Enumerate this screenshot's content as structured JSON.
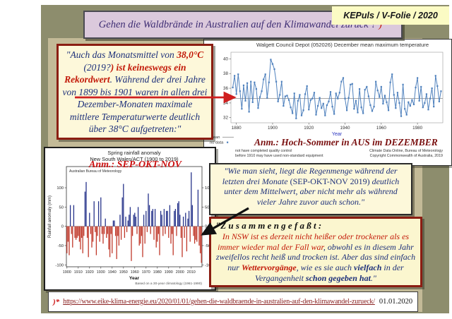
{
  "header": {
    "title_segments": [
      {
        "t": "Gehen die Waldbrände in Australien auf den Klimawandel zurück ?  ",
        "c": "purple"
      },
      {
        "t": ")*",
        "c": "red"
      }
    ],
    "badge": "KEPuls / V-Folie / 2020"
  },
  "quote1": {
    "segments": [
      {
        "t": "\"Auch das Monatsmittel von ",
        "c": "blue"
      },
      {
        "t": "38,0°C",
        "c": "redbold"
      },
      {
        "t": " (2019?",
        "c": "blue"
      },
      {
        "t": ") ist keineswegs ein Rekordwert",
        "c": "redbold"
      },
      {
        "t": ". Während der drei Jahre von ",
        "c": "blue"
      },
      {
        "t": "1899 bis 1901",
        "c": "blue"
      },
      {
        "t": " waren in allen drei Dezember-Monaten maximale mittlere Temperaturwerte deutlich über 38°C aufgetreten:\"",
        "c": "blue"
      }
    ]
  },
  "annotation_summer": "Anm.: Hoch-Sommer in AUS im DEZEMBER",
  "annotation_spring": "Anm.: SEP-OKT-NOV",
  "quote2": {
    "segments": [
      {
        "t": "\"Wie man sieht, liegt die Regenmenge während der letzten drei Monate ",
        "c": "blue"
      },
      {
        "t": "(SEP-OKT-NOV 2019)",
        "c": "blueroman"
      },
      {
        "t": " deutlich unter dem Mittelwert, aber nicht mehr als während vieler Jahre zuvor auch schon.\"",
        "c": "blue"
      }
    ]
  },
  "summary": {
    "header": "\"Z u s a m m e n g e f a ß t :",
    "segments": [
      {
        "t": "In NSW ist es derzeit nicht heißer oder trockener als es immer wieder mal der Fall war",
        "c": "red"
      },
      {
        "t": ", obwohl es in diesem Jahr zweifellos recht heiß und trocken ist. Aber das sind einfach nur ",
        "c": "blue"
      },
      {
        "t": "Wettervorgänge",
        "c": "redbold"
      },
      {
        "t": ", wie es sie auch ",
        "c": "blue"
      },
      {
        "t": "vielfach",
        "c": "bluebold"
      },
      {
        "t": " in der Vergangenheit ",
        "c": "blue"
      },
      {
        "t": "schon gegeben hat",
        "c": "bluebold"
      },
      {
        "t": ".\"",
        "c": "blue"
      }
    ]
  },
  "footer": {
    "marker": ")*",
    "link": "https://www.eike-klima-energie.eu/2020/01/01/gehen-die-waldbraende-in-australien-auf-den-klimawandel-zurueck/",
    "date": "01.01.2020"
  },
  "colors": {
    "slide_bg": "#8d8d6d",
    "panel_bg": "#c3ba97",
    "title_bg": "#dbc9dc",
    "badge_bg": "#fbfbc4",
    "box_bg": "#fdf8da",
    "box_border_red": "#8b1d12",
    "accent_red": "#c21807",
    "text_blue": "#1c2f7a",
    "line_blue": "#4f81bd",
    "bar_positive": "#27348b",
    "bar_negative": "#c0392b"
  },
  "chart_data": [
    {
      "id": "temperature",
      "type": "line",
      "title": "Walgett Council Depot (052026) December mean maximum temperature",
      "xlabel": "Year",
      "ylabel": "Mean maximum temperature (°C)",
      "x_start": 1878,
      "x_range": [
        1877,
        1994
      ],
      "mean": 34.6,
      "ylim": [
        31.3,
        40.9
      ],
      "yticks": [
        40,
        38,
        36,
        34,
        32
      ],
      "xticks": [
        1880,
        1900,
        1920,
        1940,
        1960,
        1980
      ],
      "legend": [
        {
          "label": "mean",
          "type": "line"
        },
        {
          "label": "no data",
          "type": "marker"
        }
      ],
      "line_color": "#4f81bd",
      "notes_left": [
        "not have completed quality control",
        "before 1910 may have used non-standard equipment"
      ],
      "notes_right": [
        "Climate Data Online, Bureau of Meteorology",
        "Copyright Commonwealth of Australia, 2019"
      ],
      "values": [
        36.1,
        37.7,
        35.2,
        37.9,
        35.6,
        33.2,
        36.4,
        34.3,
        36.7,
        32.8,
        36.9,
        34.1,
        36.8,
        35.9,
        33.3,
        34.8,
        35.6,
        37.2,
        37.9,
        34.7,
        36.8,
        39.9,
        39.3,
        38.6,
        36.9,
        34.2,
        35.1,
        36.9,
        33.6,
        34.9,
        35.0,
        34.4,
        33.4,
        32.6,
        35.3,
        31.9,
        34.3,
        35.1,
        32.3,
        33.0,
        35.2,
        36.3,
        33.1,
        34.4,
        34.6,
        35.4,
        32.4,
        33.6,
        34.7,
        33.3,
        33.9,
        32.3,
        33.7,
        34.2,
        35.5,
        33.5,
        32.5,
        35.3,
        34.6,
        35.4,
        36.9,
        37.4,
        34.6,
        33.0,
        34.7,
        36.5,
        36.6,
        33.2,
        34.3,
        32.7,
        35.9,
        33.4,
        32.6,
        35.8,
        36.2,
        34.9,
        33.7,
        32.9,
        33.5,
        36.9,
        35.7,
        34.8,
        36.2,
        33.9,
        35.0,
        34.1,
        33.0,
        36.8,
        37.9,
        35.1,
        33.3,
        35.4,
        34.0,
        32.2,
        36.5,
        33.2,
        32.4,
        34.1,
        33.6,
        34.4,
        33.8,
        36.1,
        37.4,
        34.3,
        36.2,
        33.4,
        34.0,
        35.2,
        33.1,
        34.6,
        36.0,
        33.5,
        37.7,
        36.3,
        34.2,
        35.6
      ]
    },
    {
      "id": "rainfall",
      "type": "bar",
      "title_line1": "Spring rainfall anomaly",
      "title_line2": "New South Wales/ACT (1900 to 2019)",
      "source_label": "Australian Bureau of Meteorology",
      "xlabel": "Year",
      "ylabel": "Rainfall anomaly (mm)",
      "footnote": "Based on a 30-year climatology (1961-1990)",
      "x_start": 1900,
      "ylim": [
        -105,
        155
      ],
      "yticks": [
        100,
        50,
        0,
        -50,
        -100
      ],
      "xticks": [
        1900,
        1910,
        1920,
        1930,
        1940,
        1950,
        1960,
        1970,
        1980,
        1990,
        2000,
        2010
      ],
      "pos_color": "#27348b",
      "neg_color": "#c0392b",
      "values": [
        -70,
        -40,
        -75,
        55,
        -20,
        -55,
        55,
        -30,
        -35,
        -30,
        -25,
        -40,
        -60,
        -30,
        -70,
        -25,
        90,
        115,
        -30,
        -80,
        35,
        -20,
        -55,
        -40,
        65,
        -15,
        -75,
        -25,
        65,
        -40,
        75,
        -20,
        -45,
        -20,
        20,
        -30,
        -20,
        -60,
        -80,
        -20,
        -70,
        15,
        15,
        -25,
        -85,
        -25,
        -50,
        30,
        -35,
        75,
        110,
        -30,
        25,
        -15,
        15,
        30,
        50,
        -90,
        -25,
        30,
        35,
        25,
        -20,
        50,
        -50,
        -45,
        -25,
        -80,
        30,
        -45,
        40,
        -15,
        85,
        55,
        -20,
        40,
        45,
        -35,
        45,
        -55,
        -40,
        -20,
        -75,
        40,
        30,
        -25,
        45,
        -20,
        40,
        40,
        -30,
        55,
        -45,
        -20,
        -75,
        40,
        45,
        -25,
        60,
        65,
        30,
        -30,
        -80,
        25,
        -30,
        35,
        -65,
        20,
        40,
        -40,
        140,
        55,
        -25,
        -45,
        -35,
        -40,
        95,
        -50,
        -70,
        -95
      ]
    }
  ]
}
